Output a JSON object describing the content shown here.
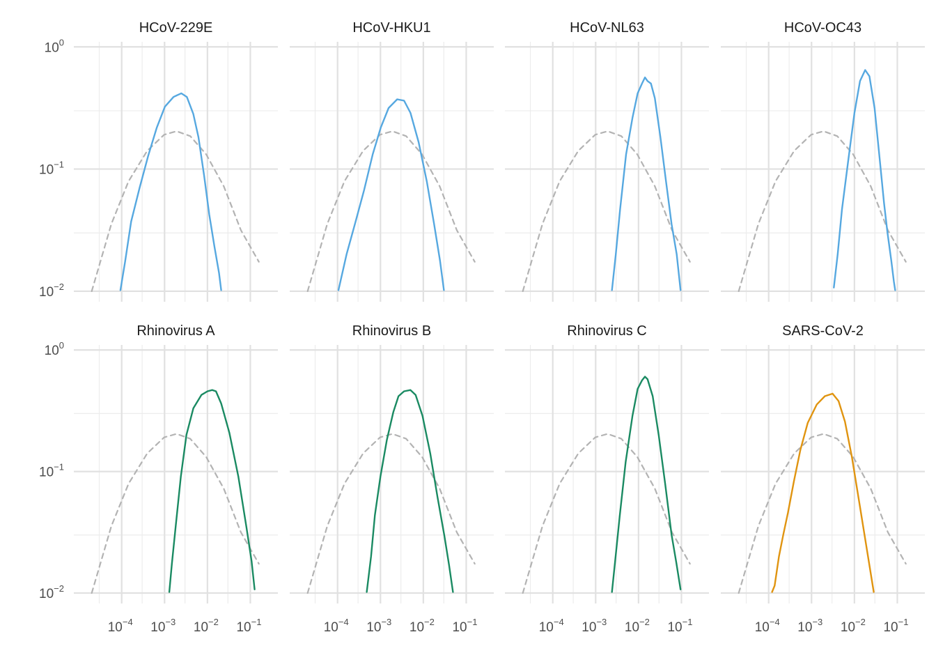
{
  "chart_data": {
    "type": "line",
    "x_scale": "log10",
    "y_scale": "log10",
    "xlim": [
      1.2e-05,
      0.28
    ],
    "ylim": [
      0.0082,
      1.1
    ],
    "x_ticks": [
      {
        "value": 0.0001,
        "base": "10",
        "exp": "−4"
      },
      {
        "value": 0.001,
        "base": "10",
        "exp": "−3"
      },
      {
        "value": 0.01,
        "base": "10",
        "exp": "−2"
      },
      {
        "value": 0.1,
        "base": "10",
        "exp": "−1"
      }
    ],
    "y_ticks": [
      {
        "value": 1,
        "base": "10",
        "exp": "0"
      },
      {
        "value": 0.1,
        "base": "10",
        "exp": "−1"
      },
      {
        "value": 0.01,
        "base": "10",
        "exp": "−2"
      }
    ],
    "grid": true,
    "layout": "facet 2x4",
    "colors": {
      "blue": "#56a8e0",
      "green": "#1a8a62",
      "orange": "#e09410",
      "reference": "#b3b3b3"
    },
    "reference_curve": {
      "style": "dashed",
      "color": "#b3b3b3",
      "points": [
        [
          2e-05,
          0.01
        ],
        [
          5.75e-05,
          0.0355
        ],
        [
          0.000145,
          0.0794
        ],
        [
          0.000394,
          0.141
        ],
        [
          0.000977,
          0.191
        ],
        [
          0.00191,
          0.204
        ],
        [
          0.00398,
          0.186
        ],
        [
          0.00933,
          0.132
        ],
        [
          0.024,
          0.0724
        ],
        [
          0.0603,
          0.0316
        ],
        [
          0.158,
          0.0174
        ]
      ]
    },
    "panels": [
      {
        "title": "HCoV-229E",
        "color": "#56a8e0",
        "points": [
          [
            9.33e-05,
            0.0102
          ],
          [
            0.00012,
            0.0174
          ],
          [
            0.000166,
            0.0372
          ],
          [
            0.000263,
            0.0708
          ],
          [
            0.000417,
            0.129
          ],
          [
            0.000661,
            0.219
          ],
          [
            0.00102,
            0.324
          ],
          [
            0.00162,
            0.389
          ],
          [
            0.00245,
            0.417
          ],
          [
            0.00331,
            0.389
          ],
          [
            0.00468,
            0.282
          ],
          [
            0.00617,
            0.182
          ],
          [
            0.00832,
            0.0891
          ],
          [
            0.011,
            0.0427
          ],
          [
            0.0145,
            0.0234
          ],
          [
            0.0186,
            0.0141
          ],
          [
            0.0209,
            0.0102
          ]
        ]
      },
      {
        "title": "HCoV-HKU1",
        "color": "#56a8e0",
        "points": [
          [
            0.000105,
            0.0102
          ],
          [
            0.000162,
            0.02
          ],
          [
            0.000263,
            0.0372
          ],
          [
            0.000417,
            0.0676
          ],
          [
            0.000661,
            0.132
          ],
          [
            0.00102,
            0.219
          ],
          [
            0.00155,
            0.316
          ],
          [
            0.00245,
            0.372
          ],
          [
            0.00355,
            0.363
          ],
          [
            0.00501,
            0.288
          ],
          [
            0.00776,
            0.166
          ],
          [
            0.012,
            0.0794
          ],
          [
            0.0178,
            0.0355
          ],
          [
            0.0245,
            0.0178
          ],
          [
            0.0302,
            0.0102
          ]
        ]
      },
      {
        "title": "HCoV-NL63",
        "color": "#56a8e0",
        "points": [
          [
            0.0024,
            0.0102
          ],
          [
            0.00295,
            0.02
          ],
          [
            0.00372,
            0.0468
          ],
          [
            0.00513,
            0.132
          ],
          [
            0.00724,
            0.263
          ],
          [
            0.00955,
            0.417
          ],
          [
            0.012,
            0.5
          ],
          [
            0.0141,
            0.562
          ],
          [
            0.0162,
            0.525
          ],
          [
            0.0195,
            0.501
          ],
          [
            0.024,
            0.38
          ],
          [
            0.0324,
            0.182
          ],
          [
            0.0437,
            0.0794
          ],
          [
            0.0589,
            0.0355
          ],
          [
            0.0776,
            0.02
          ],
          [
            0.0955,
            0.0102
          ]
        ]
      },
      {
        "title": "HCoV-OC43",
        "color": "#56a8e0",
        "points": [
          [
            0.00331,
            0.0107
          ],
          [
            0.00407,
            0.02
          ],
          [
            0.00513,
            0.0468
          ],
          [
            0.00724,
            0.12
          ],
          [
            0.01,
            0.288
          ],
          [
            0.0135,
            0.525
          ],
          [
            0.0178,
            0.646
          ],
          [
            0.0224,
            0.575
          ],
          [
            0.0295,
            0.316
          ],
          [
            0.0389,
            0.12
          ],
          [
            0.049,
            0.0525
          ],
          [
            0.0589,
            0.0302
          ],
          [
            0.0724,
            0.0178
          ],
          [
            0.0832,
            0.012
          ],
          [
            0.0891,
            0.0102
          ]
        ]
      },
      {
        "title": "Rhinovirus A",
        "color": "#1a8a62",
        "points": [
          [
            0.00129,
            0.0102
          ],
          [
            0.00148,
            0.0174
          ],
          [
            0.00182,
            0.0355
          ],
          [
            0.0024,
            0.0912
          ],
          [
            0.00324,
            0.2
          ],
          [
            0.00468,
            0.331
          ],
          [
            0.00724,
            0.427
          ],
          [
            0.01,
            0.457
          ],
          [
            0.0129,
            0.468
          ],
          [
            0.0158,
            0.457
          ],
          [
            0.0209,
            0.363
          ],
          [
            0.0324,
            0.209
          ],
          [
            0.0525,
            0.0912
          ],
          [
            0.0813,
            0.0347
          ],
          [
            0.107,
            0.0182
          ],
          [
            0.126,
            0.0107
          ]
        ]
      },
      {
        "title": "Rhinovirus B",
        "color": "#1a8a62",
        "points": [
          [
            0.000479,
            0.0102
          ],
          [
            0.000603,
            0.02
          ],
          [
            0.000741,
            0.0437
          ],
          [
            0.001,
            0.0912
          ],
          [
            0.00141,
            0.182
          ],
          [
            0.002,
            0.309
          ],
          [
            0.00263,
            0.417
          ],
          [
            0.00355,
            0.457
          ],
          [
            0.00501,
            0.468
          ],
          [
            0.00661,
            0.427
          ],
          [
            0.00955,
            0.288
          ],
          [
            0.0145,
            0.141
          ],
          [
            0.0214,
            0.0617
          ],
          [
            0.0309,
            0.0295
          ],
          [
            0.0398,
            0.017
          ],
          [
            0.049,
            0.0102
          ]
        ]
      },
      {
        "title": "Rhinovirus C",
        "color": "#1a8a62",
        "points": [
          [
            0.0024,
            0.0102
          ],
          [
            0.00288,
            0.0191
          ],
          [
            0.00363,
            0.0427
          ],
          [
            0.00501,
            0.12
          ],
          [
            0.00724,
            0.288
          ],
          [
            0.00955,
            0.479
          ],
          [
            0.012,
            0.562
          ],
          [
            0.0141,
            0.603
          ],
          [
            0.0162,
            0.575
          ],
          [
            0.0214,
            0.417
          ],
          [
            0.0295,
            0.2
          ],
          [
            0.0417,
            0.0794
          ],
          [
            0.0589,
            0.0302
          ],
          [
            0.0759,
            0.0178
          ],
          [
            0.0955,
            0.0107
          ]
        ]
      },
      {
        "title": "SARS-CoV-2",
        "color": "#e09410",
        "points": [
          [
            0.00012,
            0.0102
          ],
          [
            0.000138,
            0.0115
          ],
          [
            0.000174,
            0.02
          ],
          [
            0.000219,
            0.0302
          ],
          [
            0.000282,
            0.0457
          ],
          [
            0.000389,
            0.0832
          ],
          [
            0.00055,
            0.151
          ],
          [
            0.000813,
            0.251
          ],
          [
            0.00132,
            0.355
          ],
          [
            0.00204,
            0.417
          ],
          [
            0.00309,
            0.437
          ],
          [
            0.00426,
            0.38
          ],
          [
            0.00603,
            0.257
          ],
          [
            0.00871,
            0.132
          ],
          [
            0.0129,
            0.0562
          ],
          [
            0.0195,
            0.0229
          ],
          [
            0.0282,
            0.0102
          ]
        ]
      }
    ]
  }
}
